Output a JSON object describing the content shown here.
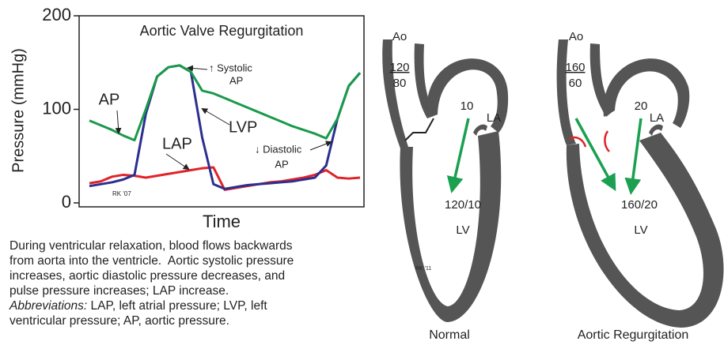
{
  "chart_data": {
    "type": "line",
    "title": "Aortic Valve Regurgitation",
    "x_label": "Time",
    "y_label": "Pressure (mmHg)",
    "ylim": [
      0,
      200
    ],
    "yticks": [
      0,
      100,
      200
    ],
    "categories": [
      null,
      null,
      null,
      null,
      null,
      null,
      null,
      null,
      null,
      null,
      null,
      null,
      null,
      null,
      null,
      null,
      null,
      null,
      null,
      null,
      null,
      null,
      null,
      null,
      null
    ],
    "series": [
      {
        "name": "LAP",
        "color": "#e0232a",
        "values": [
          21,
          23,
          28,
          30,
          29,
          27,
          29,
          31,
          33,
          35,
          37,
          38,
          14,
          16,
          18,
          20,
          22,
          23,
          25,
          27,
          30,
          35,
          27,
          26,
          27
        ]
      },
      {
        "name": "LVP",
        "color": "#2b2f8f",
        "values": [
          18,
          20,
          22,
          25,
          30,
          95,
          135,
          145,
          147,
          140,
          70,
          20,
          15,
          17,
          19,
          20,
          21,
          22,
          23,
          25,
          27,
          40,
          90,
          125,
          139
        ]
      },
      {
        "name": "AP",
        "color": "#1a9a4a",
        "values": [
          88,
          83,
          78,
          72,
          67,
          100,
          135,
          145,
          147,
          140,
          120,
          117,
          112,
          107,
          102,
          97,
          92,
          87,
          82,
          78,
          74,
          69,
          90,
          125,
          139
        ]
      }
    ],
    "annotations": [
      "↑ Systolic",
      "AP",
      "↓ Diastolic",
      "AP",
      "RK '07"
    ]
  },
  "caption": {
    "lines": [
      "During ventricular relaxation, blood flows backwards",
      "from aorta into the ventricle.  Aortic systolic pressure",
      "increases, aortic diastolic pressure decreases, and",
      "pulse pressure increases; LAP increase."
    ],
    "abbreviations_label": "Abbreviations:",
    "abbreviations_lines": [
      " LAP, left atrial pressure; LVP, left",
      "ventricular pressure; AP, aortic pressure."
    ]
  },
  "diagrams": [
    {
      "title": "Normal",
      "aorta": "Ao",
      "aortic_systolic": "120",
      "aortic_diastolic": "80",
      "la_pressure": "10",
      "la": "LA",
      "lv_pressure": "120/10",
      "lv": "LV",
      "signature": "RK '11"
    },
    {
      "title": "Aortic Regurgitation",
      "aorta": "Ao",
      "aortic_systolic": "160",
      "aortic_diastolic": "60",
      "la_pressure": "20",
      "la": "LA",
      "lv_pressure": "160/20",
      "lv": "LV"
    }
  ]
}
